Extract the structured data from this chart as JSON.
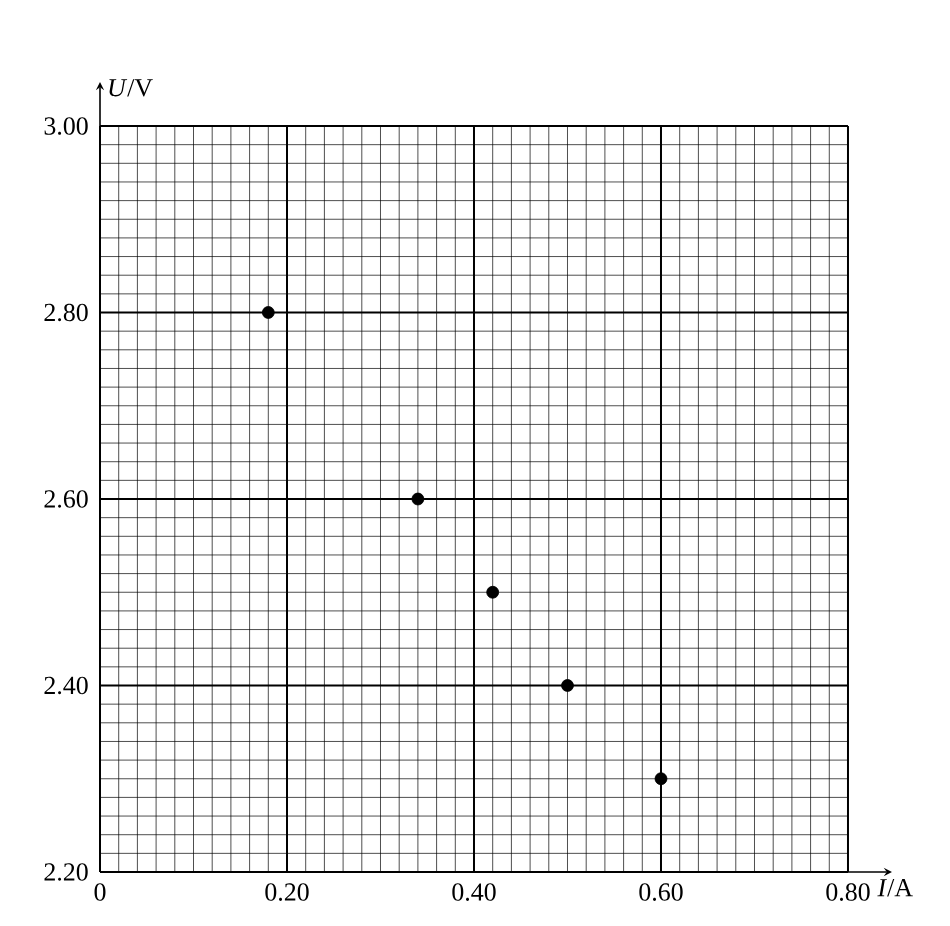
{
  "chart_data": {
    "type": "scatter",
    "xlabel": "*I*/A",
    "ylabel": "*U*/V",
    "x": [
      0.18,
      0.34,
      0.42,
      0.5,
      0.6
    ],
    "series": [
      {
        "color": "#000000",
        "values": [
          2.8,
          2.6,
          2.5,
          2.4,
          2.3
        ]
      }
    ],
    "xlim": [
      0,
      0.8
    ],
    "ylim": [
      2.2,
      3.0
    ],
    "xticks": [
      0,
      {
        "value": 0.2,
        "label": "0.20"
      },
      {
        "value": 0.4,
        "label": "0.40"
      },
      {
        "value": 0.6,
        "label": "0.60"
      },
      {
        "value": 0.8,
        "label": "0.80"
      }
    ],
    "yticks": [
      {
        "value": 2.2,
        "label": "2.20"
      },
      {
        "value": 2.4,
        "label": "2.40"
      },
      {
        "value": 2.6,
        "label": "2.60"
      },
      {
        "value": 2.8,
        "label": "2.80"
      },
      {
        "value": 3.0,
        "label": "3.00"
      }
    ],
    "grid": true,
    "marker": "circle"
  }
}
